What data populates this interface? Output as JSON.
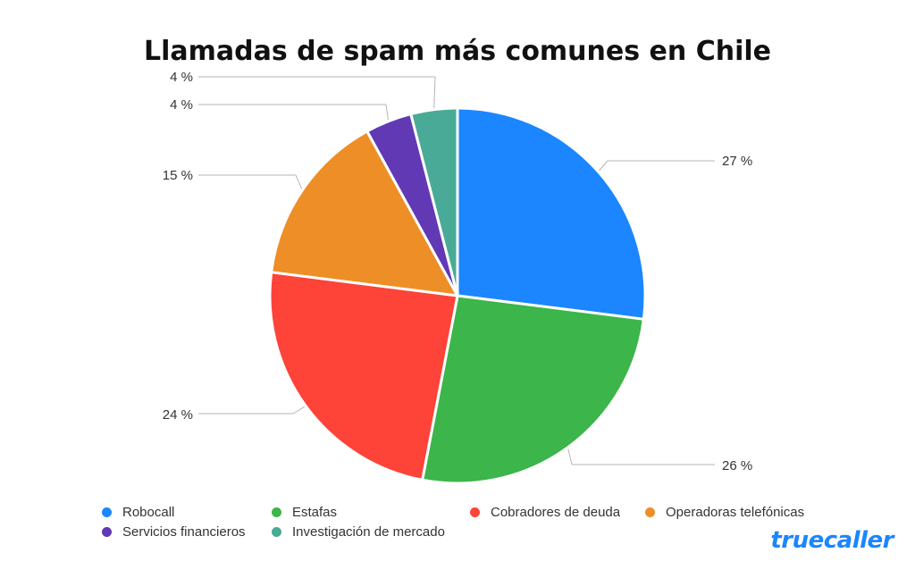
{
  "chart_data": {
    "type": "pie",
    "title": "Llamadas de spam más comunes en Chile",
    "unit": "%",
    "slices": [
      {
        "name": "Robocall",
        "value": 27,
        "label": "27 %",
        "color": "#1b86ff"
      },
      {
        "name": "Estafas",
        "value": 26,
        "label": "26 %",
        "color": "#3cb54a"
      },
      {
        "name": "Cobradores de deuda",
        "value": 24,
        "label": "24 %",
        "color": "#fe4339"
      },
      {
        "name": "Operadoras telefónicas",
        "value": 15,
        "label": "15 %",
        "color": "#ed8f26"
      },
      {
        "name": "Servicios financieros",
        "value": 4,
        "label": "4 %",
        "color": "#6139b5"
      },
      {
        "name": "Investigación de mercado",
        "value": 4,
        "label": "4 %",
        "color": "#49aa97"
      }
    ],
    "legend_position": "bottom"
  },
  "brand": {
    "logo_text": "truecaller",
    "color": "#1b86ff"
  }
}
